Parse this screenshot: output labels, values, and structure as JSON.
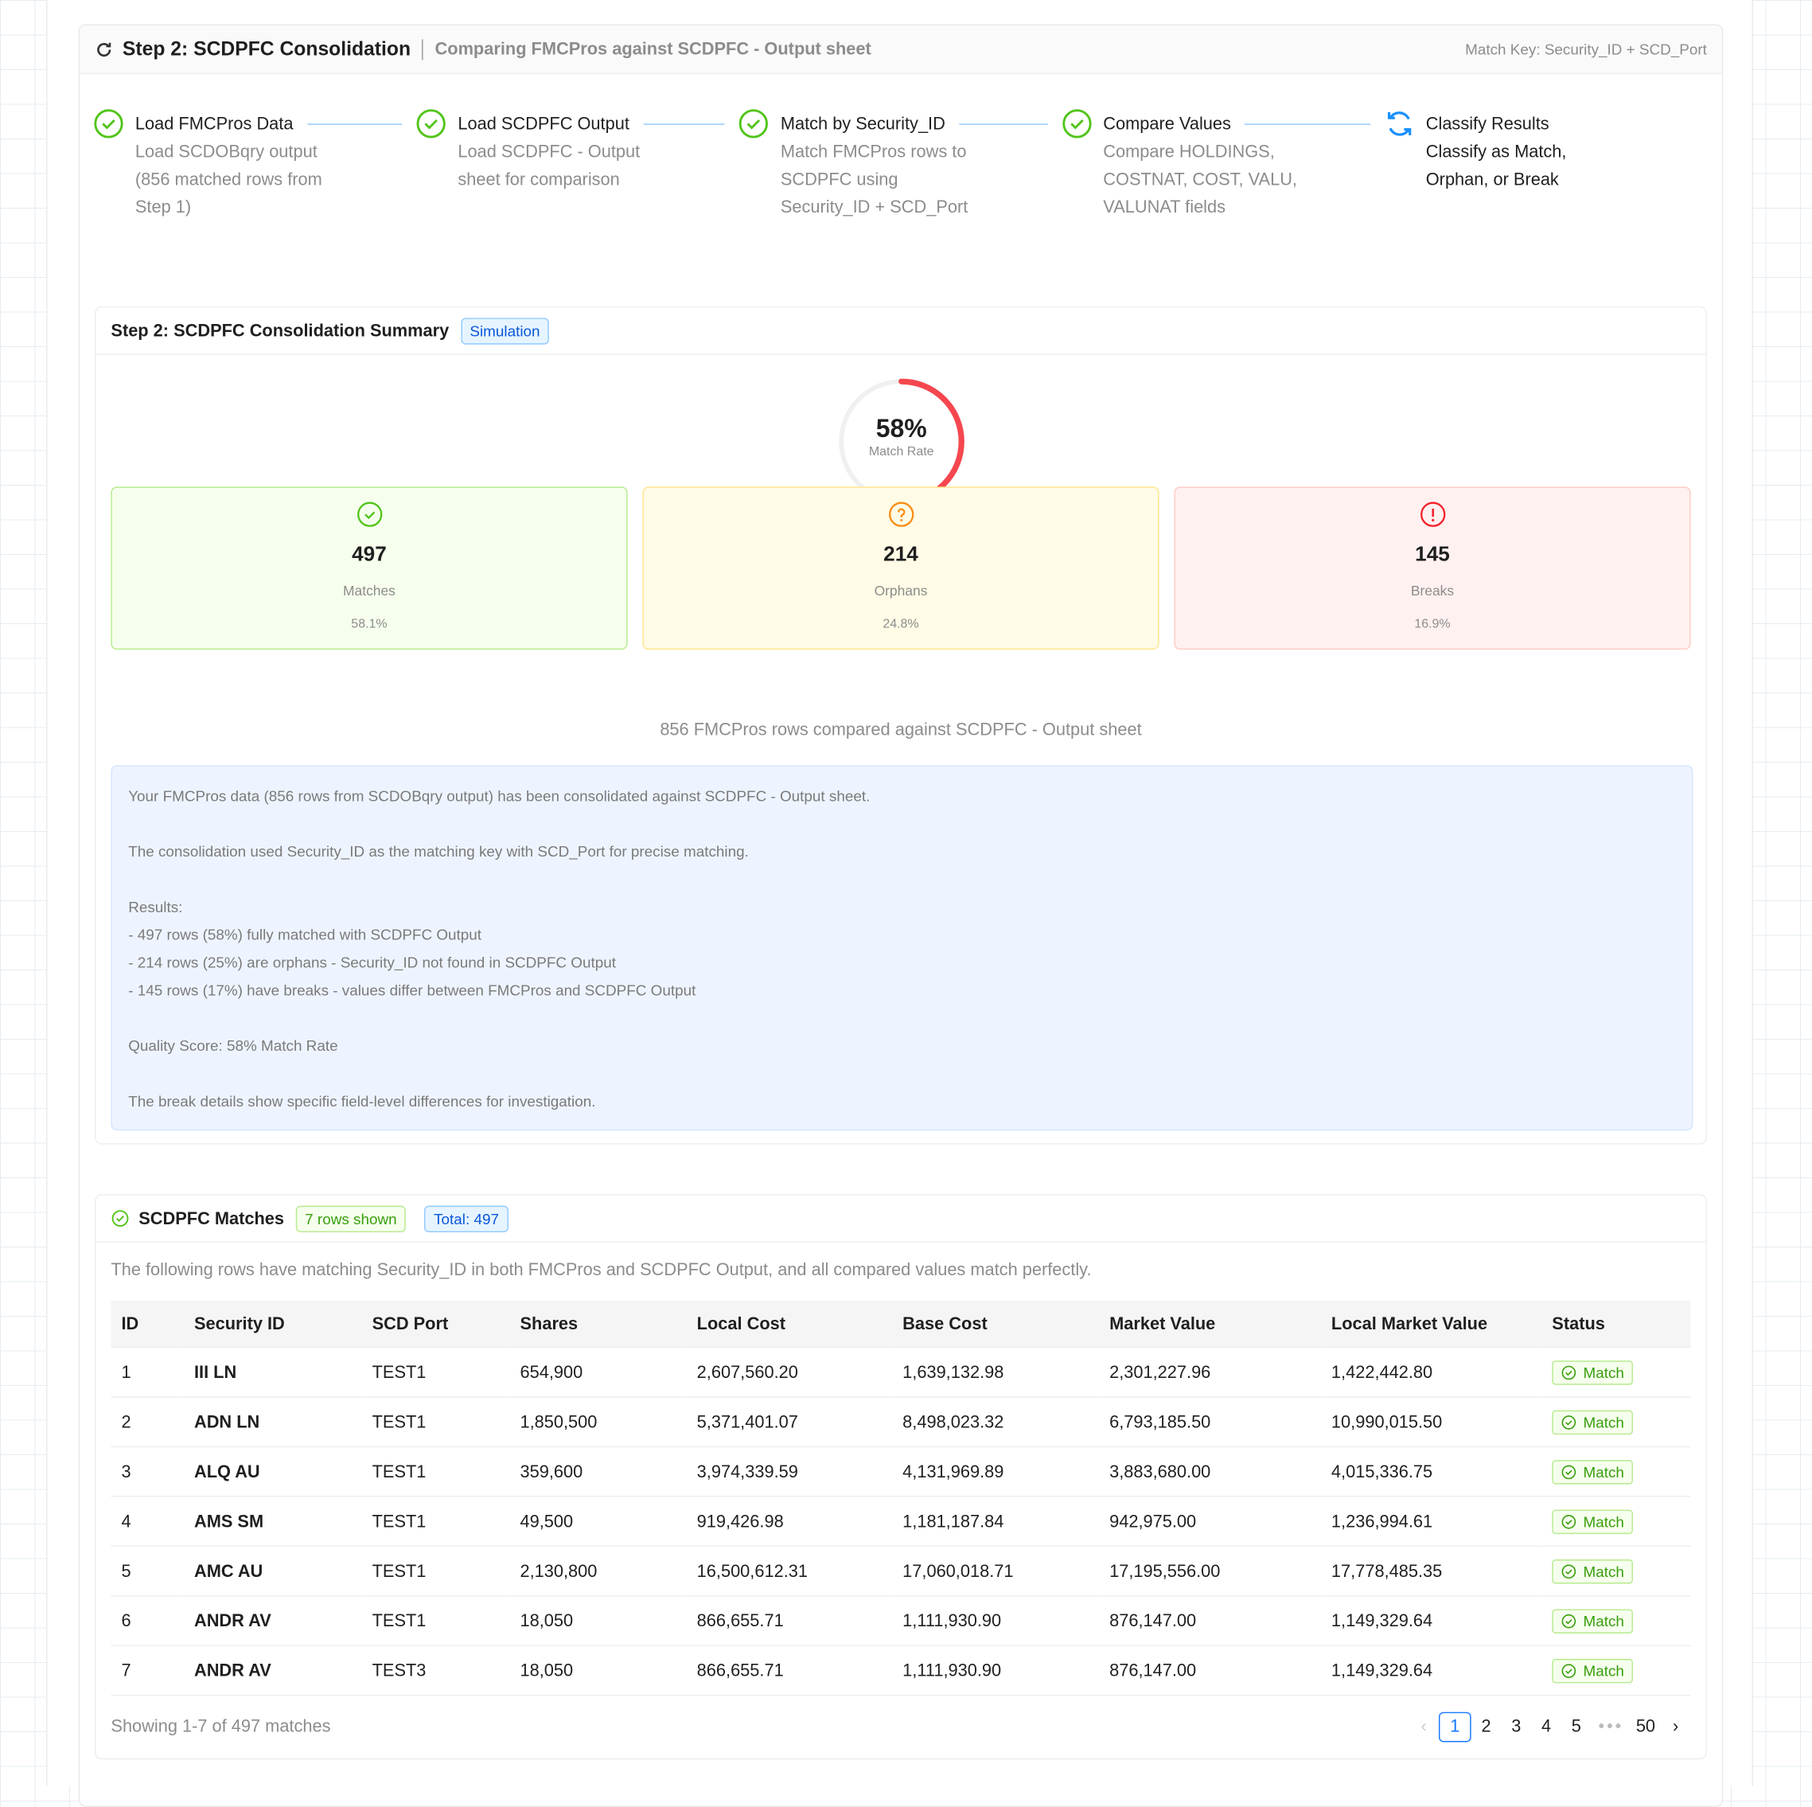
{
  "header": {
    "title": "Step 2: SCDPFC Consolidation",
    "subtitle": "Comparing FMCPros against SCDPFC - Output sheet",
    "match_key": "Match Key: Security_ID + SCD_Port"
  },
  "steps": [
    {
      "title": "Load FMCPros Data",
      "description": "Load SCDOBqry output (856 matched rows from Step 1)",
      "status": "done"
    },
    {
      "title": "Load SCDPFC Output",
      "description": "Load SCDPFC - Output sheet for comparison",
      "status": "done"
    },
    {
      "title": "Match by Security_ID",
      "description": "Match FMCPros rows to SCDPFC using Security_ID + SCD_Port",
      "status": "done"
    },
    {
      "title": "Compare Values",
      "description": "Compare HOLDINGS, COSTNAT, COST, VALU, VALUNAT fields",
      "status": "done"
    },
    {
      "title": "Classify Results",
      "description": "Classify as Match, Orphan, or Break",
      "status": "active"
    }
  ],
  "summary": {
    "title": "Step 2: SCDPFC Consolidation Summary",
    "badge": "Simulation",
    "gauge": {
      "value": 58,
      "value_label": "58%",
      "label": "Match Rate"
    },
    "stats": [
      {
        "value": "497",
        "label": "Matches",
        "percent": "58.1%",
        "kind": "match"
      },
      {
        "value": "214",
        "label": "Orphans",
        "percent": "24.8%",
        "kind": "orphan"
      },
      {
        "value": "145",
        "label": "Breaks",
        "percent": "16.9%",
        "kind": "break"
      }
    ],
    "caption": "856 FMCPros rows compared against SCDPFC - Output sheet",
    "notes": [
      [
        "Your FMCPros data (856 rows from SCDOBqry output) has been consolidated against SCDPFC - Output sheet."
      ],
      [
        "The consolidation used Security_ID as the matching key with SCD_Port for precise matching."
      ],
      [
        "Results:",
        "- 497 rows (58%) fully matched with SCDPFC Output",
        "- 214 rows (25%) are orphans - Security_ID not found in SCDPFC Output",
        "- 145 rows (17%) have breaks - values differ between FMCPros and SCDPFC Output"
      ],
      [
        "Quality Score: 58% Match Rate"
      ],
      [
        "The break details show specific field-level differences for investigation."
      ]
    ]
  },
  "matches": {
    "title": "SCDPFC Matches",
    "rows_badge": "7 rows shown",
    "total_badge": "Total: 497",
    "description": "The following rows have matching Security_ID in both FMCPros and SCDPFC Output, and all compared values match perfectly.",
    "table": {
      "columns": [
        "ID",
        "Security ID",
        "SCD Port",
        "Shares",
        "Local Cost",
        "Base Cost",
        "Market Value",
        "Local Market Value",
        "Status"
      ],
      "rows": [
        [
          "1",
          "III LN",
          "TEST1",
          "654,900",
          "2,607,560.20",
          "1,639,132.98",
          "2,301,227.96",
          "1,422,442.80",
          "Match"
        ],
        [
          "2",
          "ADN LN",
          "TEST1",
          "1,850,500",
          "5,371,401.07",
          "8,498,023.32",
          "6,793,185.50",
          "10,990,015.50",
          "Match"
        ],
        [
          "3",
          "ALQ AU",
          "TEST1",
          "359,600",
          "3,974,339.59",
          "4,131,969.89",
          "3,883,680.00",
          "4,015,336.75",
          "Match"
        ],
        [
          "4",
          "AMS SM",
          "TEST1",
          "49,500",
          "919,426.98",
          "1,181,187.84",
          "942,975.00",
          "1,236,994.61",
          "Match"
        ],
        [
          "5",
          "AMC AU",
          "TEST1",
          "2,130,800",
          "16,500,612.31",
          "17,060,018.71",
          "17,195,556.00",
          "17,778,485.35",
          "Match"
        ],
        [
          "6",
          "ANDR AV",
          "TEST1",
          "18,050",
          "866,655.71",
          "1,111,930.90",
          "876,147.00",
          "1,149,329.64",
          "Match"
        ],
        [
          "7",
          "ANDR AV",
          "TEST3",
          "18,050",
          "866,655.71",
          "1,111,930.90",
          "876,147.00",
          "1,149,329.64",
          "Match"
        ]
      ]
    },
    "footer": "Showing 1-7 of 497 matches",
    "pagination": [
      "1",
      "2",
      "3",
      "4",
      "5",
      "50"
    ]
  }
}
